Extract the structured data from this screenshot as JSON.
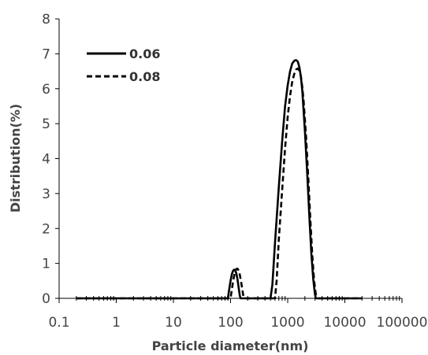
{
  "chart_data": {
    "type": "line",
    "xlabel": "Particle diameter(nm)",
    "ylabel": "Distribution(%)",
    "x_scale": "log",
    "xlim": [
      0.1,
      100000
    ],
    "ylim": [
      0,
      8
    ],
    "x_ticks": [
      0.1,
      1,
      10,
      100,
      1000,
      10000,
      100000
    ],
    "x_tick_labels": [
      "0.1",
      "1",
      "10",
      "100",
      "1000",
      "10000",
      "100000"
    ],
    "y_ticks": [
      0,
      1,
      2,
      3,
      4,
      5,
      6,
      7,
      8
    ],
    "y_tick_labels": [
      "0",
      "1",
      "2",
      "3",
      "4",
      "5",
      "6",
      "7",
      "8"
    ],
    "grid": false,
    "legend_position": "top-left",
    "series": [
      {
        "name": "0.06",
        "style": "solid",
        "color": "#000000",
        "x": [
          0.2,
          90,
          92,
          96,
          100,
          105,
          110,
          115,
          120,
          126,
          132,
          138,
          145,
          150,
          500,
          540,
          600,
          700,
          800,
          900,
          1000,
          1100,
          1200,
          1300,
          1400,
          1500,
          1600,
          1700,
          1800,
          2000,
          2200,
          2400,
          2600,
          2800,
          3000,
          3100,
          20000
        ],
        "y": [
          0,
          0,
          0.12,
          0.32,
          0.5,
          0.68,
          0.78,
          0.82,
          0.8,
          0.72,
          0.55,
          0.33,
          0.08,
          0,
          0,
          0.4,
          1.6,
          3.2,
          4.5,
          5.5,
          6.1,
          6.5,
          6.72,
          6.8,
          6.82,
          6.78,
          6.62,
          6.35,
          5.95,
          4.8,
          3.55,
          2.3,
          1.25,
          0.55,
          0.12,
          0,
          0
        ]
      },
      {
        "name": "0.08",
        "style": "dashed",
        "color": "#000000",
        "x": [
          0.2,
          100,
          102,
          106,
          110,
          115,
          120,
          126,
          132,
          138,
          145,
          152,
          160,
          168,
          175,
          600,
          640,
          700,
          800,
          900,
          1000,
          1100,
          1200,
          1300,
          1400,
          1500,
          1600,
          1700,
          1800,
          1900,
          2100,
          2300,
          2500,
          2700,
          2900,
          3100,
          3300,
          3400,
          20000
        ],
        "y": [
          0,
          0,
          0.1,
          0.28,
          0.46,
          0.63,
          0.76,
          0.84,
          0.85,
          0.8,
          0.68,
          0.5,
          0.27,
          0.05,
          0,
          0,
          0.5,
          1.7,
          3.1,
          4.3,
          5.2,
          5.8,
          6.2,
          6.42,
          6.55,
          6.58,
          6.52,
          6.35,
          6.05,
          5.65,
          4.6,
          3.4,
          2.2,
          1.2,
          0.5,
          0.12,
          0.02,
          0,
          0
        ]
      }
    ]
  }
}
